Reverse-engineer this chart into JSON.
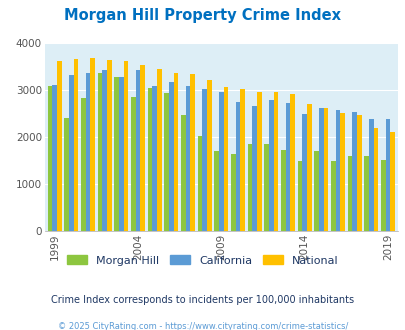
{
  "title": "Morgan Hill Property Crime Index",
  "title_color": "#0070c0",
  "years": [
    1999,
    2000,
    2001,
    2002,
    2003,
    2004,
    2005,
    2006,
    2007,
    2008,
    2009,
    2010,
    2011,
    2012,
    2013,
    2014,
    2015,
    2016,
    2017,
    2018,
    2019,
    2020
  ],
  "morgan_hill": [
    3080,
    2400,
    2820,
    3350,
    3280,
    2840,
    3050,
    2940,
    2460,
    2030,
    1700,
    1640,
    1850,
    1860,
    1720,
    1480,
    1710,
    1480,
    1590,
    1600,
    1520,
    null
  ],
  "california": [
    3100,
    3310,
    3370,
    3420,
    3280,
    3420,
    3080,
    3170,
    3080,
    3020,
    2960,
    2740,
    2650,
    2780,
    2730,
    2480,
    2620,
    2580,
    2540,
    2390,
    2380,
    null
  ],
  "national": [
    3610,
    3660,
    3670,
    3630,
    3610,
    3520,
    3440,
    3350,
    3340,
    3210,
    3060,
    3020,
    2960,
    2950,
    2920,
    2710,
    2620,
    2510,
    2470,
    2200,
    2110,
    null
  ],
  "colors": {
    "morgan_hill": "#8dc63f",
    "california": "#5b9bd5",
    "national": "#ffc000"
  },
  "bg_color": "#ddeef6",
  "ylim": [
    0,
    4000
  ],
  "yticks": [
    0,
    1000,
    2000,
    3000,
    4000
  ],
  "xlabel_ticks": [
    1999,
    2004,
    2009,
    2014,
    2019
  ],
  "legend_labels": [
    "Morgan Hill",
    "California",
    "National"
  ],
  "subtitle": "Crime Index corresponds to incidents per 100,000 inhabitants",
  "footer": "© 2025 CityRating.com - https://www.cityrating.com/crime-statistics/",
  "subtitle_color": "#1f3864",
  "footer_color": "#5b9bd5"
}
